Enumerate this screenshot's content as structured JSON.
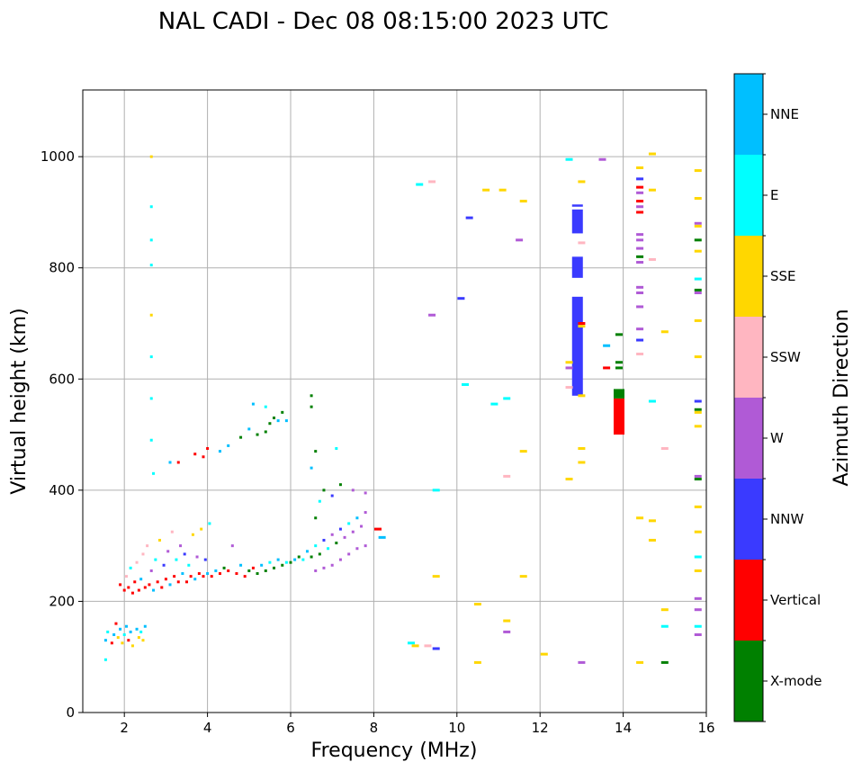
{
  "chart_data": {
    "type": "scatter",
    "title": "NAL CADI - Dec 08 08:15:00 2023 UTC",
    "xlabel": "Frequency (MHz)",
    "ylabel": "Virtual height (km)",
    "xlim": [
      1,
      16
    ],
    "ylim": [
      0,
      1120
    ],
    "xticks": [
      "2",
      "4",
      "6",
      "8",
      "10",
      "12",
      "14",
      "16"
    ],
    "yticks": [
      "0",
      "200",
      "400",
      "600",
      "800",
      "1000"
    ],
    "grid": true,
    "colorbar": {
      "label": "Azimuth Direction",
      "categories": [
        {
          "name": "X-mode",
          "color": "#008000"
        },
        {
          "name": "Vertical",
          "color": "#ff0000"
        },
        {
          "name": "NNW",
          "color": "#3a3aff"
        },
        {
          "name": "W",
          "color": "#b05ad6"
        },
        {
          "name": "SSW",
          "color": "#ffb6c1"
        },
        {
          "name": "SSE",
          "color": "#ffd700"
        },
        {
          "name": "E",
          "color": "#00ffff"
        },
        {
          "name": "NNE",
          "color": "#00bfff"
        }
      ]
    },
    "points": [
      {
        "f": 1.55,
        "h": 130,
        "c": "NNE"
      },
      {
        "f": 1.6,
        "h": 145,
        "c": "E"
      },
      {
        "f": 1.55,
        "h": 95,
        "c": "E"
      },
      {
        "f": 1.7,
        "h": 125,
        "c": "Vertical"
      },
      {
        "f": 1.75,
        "h": 140,
        "c": "NNE"
      },
      {
        "f": 1.8,
        "h": 160,
        "c": "Vertical"
      },
      {
        "f": 1.85,
        "h": 135,
        "c": "SSE"
      },
      {
        "f": 1.9,
        "h": 150,
        "c": "NNE"
      },
      {
        "f": 1.95,
        "h": 125,
        "c": "SSE"
      },
      {
        "f": 2.0,
        "h": 140,
        "c": "E"
      },
      {
        "f": 2.05,
        "h": 155,
        "c": "NNE"
      },
      {
        "f": 2.1,
        "h": 130,
        "c": "Vertical"
      },
      {
        "f": 2.15,
        "h": 145,
        "c": "NNE"
      },
      {
        "f": 2.2,
        "h": 120,
        "c": "SSE"
      },
      {
        "f": 2.3,
        "h": 150,
        "c": "NNE"
      },
      {
        "f": 2.35,
        "h": 135,
        "c": "SSE"
      },
      {
        "f": 2.4,
        "h": 145,
        "c": "E"
      },
      {
        "f": 2.45,
        "h": 130,
        "c": "SSE"
      },
      {
        "f": 2.5,
        "h": 155,
        "c": "NNE"
      },
      {
        "f": 1.9,
        "h": 230,
        "c": "Vertical"
      },
      {
        "f": 2.0,
        "h": 220,
        "c": "Vertical"
      },
      {
        "f": 2.05,
        "h": 245,
        "c": "SSW"
      },
      {
        "f": 2.1,
        "h": 225,
        "c": "Vertical"
      },
      {
        "f": 2.15,
        "h": 260,
        "c": "E"
      },
      {
        "f": 2.2,
        "h": 215,
        "c": "Vertical"
      },
      {
        "f": 2.25,
        "h": 235,
        "c": "Vertical"
      },
      {
        "f": 2.3,
        "h": 270,
        "c": "SSW"
      },
      {
        "f": 2.35,
        "h": 220,
        "c": "Vertical"
      },
      {
        "f": 2.4,
        "h": 240,
        "c": "NNE"
      },
      {
        "f": 2.45,
        "h": 285,
        "c": "SSW"
      },
      {
        "f": 2.5,
        "h": 225,
        "c": "Vertical"
      },
      {
        "f": 2.55,
        "h": 300,
        "c": "SSW"
      },
      {
        "f": 2.6,
        "h": 230,
        "c": "Vertical"
      },
      {
        "f": 2.65,
        "h": 255,
        "c": "W"
      },
      {
        "f": 2.7,
        "h": 220,
        "c": "NNE"
      },
      {
        "f": 2.75,
        "h": 275,
        "c": "E"
      },
      {
        "f": 2.8,
        "h": 235,
        "c": "Vertical"
      },
      {
        "f": 2.85,
        "h": 310,
        "c": "SSE"
      },
      {
        "f": 2.9,
        "h": 225,
        "c": "Vertical"
      },
      {
        "f": 2.95,
        "h": 265,
        "c": "NNW"
      },
      {
        "f": 3.0,
        "h": 240,
        "c": "Vertical"
      },
      {
        "f": 3.05,
        "h": 290,
        "c": "W"
      },
      {
        "f": 3.1,
        "h": 230,
        "c": "NNE"
      },
      {
        "f": 3.15,
        "h": 325,
        "c": "SSW"
      },
      {
        "f": 3.2,
        "h": 245,
        "c": "Vertical"
      },
      {
        "f": 3.25,
        "h": 275,
        "c": "E"
      },
      {
        "f": 3.3,
        "h": 235,
        "c": "Vertical"
      },
      {
        "f": 3.35,
        "h": 300,
        "c": "W"
      },
      {
        "f": 3.4,
        "h": 250,
        "c": "NNE"
      },
      {
        "f": 3.45,
        "h": 285,
        "c": "NNW"
      },
      {
        "f": 3.5,
        "h": 235,
        "c": "Vertical"
      },
      {
        "f": 3.55,
        "h": 265,
        "c": "E"
      },
      {
        "f": 3.6,
        "h": 245,
        "c": "Vertical"
      },
      {
        "f": 3.65,
        "h": 320,
        "c": "SSE"
      },
      {
        "f": 3.7,
        "h": 240,
        "c": "NNE"
      },
      {
        "f": 3.75,
        "h": 280,
        "c": "W"
      },
      {
        "f": 3.8,
        "h": 250,
        "c": "Vertical"
      },
      {
        "f": 3.85,
        "h": 330,
        "c": "SSE"
      },
      {
        "f": 3.9,
        "h": 245,
        "c": "Vertical"
      },
      {
        "f": 3.95,
        "h": 275,
        "c": "NNW"
      },
      {
        "f": 4.0,
        "h": 250,
        "c": "NNE"
      },
      {
        "f": 4.05,
        "h": 340,
        "c": "E"
      },
      {
        "f": 4.1,
        "h": 245,
        "c": "Vertical"
      },
      {
        "f": 4.2,
        "h": 255,
        "c": "NNE"
      },
      {
        "f": 4.3,
        "h": 250,
        "c": "Vertical"
      },
      {
        "f": 4.4,
        "h": 260,
        "c": "X-mode"
      },
      {
        "f": 4.5,
        "h": 255,
        "c": "Vertical"
      },
      {
        "f": 4.6,
        "h": 300,
        "c": "W"
      },
      {
        "f": 4.7,
        "h": 250,
        "c": "Vertical"
      },
      {
        "f": 4.8,
        "h": 265,
        "c": "NNE"
      },
      {
        "f": 4.9,
        "h": 245,
        "c": "Vertical"
      },
      {
        "f": 5.0,
        "h": 255,
        "c": "X-mode"
      },
      {
        "f": 5.1,
        "h": 260,
        "c": "Vertical"
      },
      {
        "f": 5.2,
        "h": 250,
        "c": "X-mode"
      },
      {
        "f": 5.3,
        "h": 265,
        "c": "NNE"
      },
      {
        "f": 5.4,
        "h": 255,
        "c": "X-mode"
      },
      {
        "f": 5.5,
        "h": 270,
        "c": "E"
      },
      {
        "f": 5.6,
        "h": 260,
        "c": "X-mode"
      },
      {
        "f": 5.7,
        "h": 275,
        "c": "NNE"
      },
      {
        "f": 5.8,
        "h": 265,
        "c": "X-mode"
      },
      {
        "f": 5.9,
        "h": 270,
        "c": "E"
      },
      {
        "f": 6.0,
        "h": 270,
        "c": "X-mode"
      },
      {
        "f": 6.1,
        "h": 275,
        "c": "NNE"
      },
      {
        "f": 6.2,
        "h": 280,
        "c": "X-mode"
      },
      {
        "f": 6.3,
        "h": 275,
        "c": "E"
      },
      {
        "f": 6.4,
        "h": 290,
        "c": "NNE"
      },
      {
        "f": 6.5,
        "h": 280,
        "c": "X-mode"
      },
      {
        "f": 6.6,
        "h": 300,
        "c": "E"
      },
      {
        "f": 6.7,
        "h": 285,
        "c": "X-mode"
      },
      {
        "f": 6.8,
        "h": 310,
        "c": "NNW"
      },
      {
        "f": 6.9,
        "h": 295,
        "c": "E"
      },
      {
        "f": 7.0,
        "h": 320,
        "c": "W"
      },
      {
        "f": 7.1,
        "h": 305,
        "c": "X-mode"
      },
      {
        "f": 7.2,
        "h": 330,
        "c": "NNW"
      },
      {
        "f": 7.3,
        "h": 315,
        "c": "W"
      },
      {
        "f": 7.4,
        "h": 340,
        "c": "E"
      },
      {
        "f": 7.5,
        "h": 325,
        "c": "W"
      },
      {
        "f": 7.6,
        "h": 350,
        "c": "NNE"
      },
      {
        "f": 7.7,
        "h": 335,
        "c": "W"
      },
      {
        "f": 7.8,
        "h": 360,
        "c": "W"
      },
      {
        "f": 6.6,
        "h": 255,
        "c": "W"
      },
      {
        "f": 6.8,
        "h": 260,
        "c": "W"
      },
      {
        "f": 7.0,
        "h": 265,
        "c": "W"
      },
      {
        "f": 7.2,
        "h": 275,
        "c": "W"
      },
      {
        "f": 7.4,
        "h": 285,
        "c": "W"
      },
      {
        "f": 7.6,
        "h": 295,
        "c": "W"
      },
      {
        "f": 7.8,
        "h": 300,
        "c": "W"
      },
      {
        "f": 8.1,
        "h": 330,
        "c": "Vertical"
      },
      {
        "f": 8.2,
        "h": 315,
        "c": "NNE"
      },
      {
        "f": 6.6,
        "h": 350,
        "c": "X-mode"
      },
      {
        "f": 6.7,
        "h": 380,
        "c": "E"
      },
      {
        "f": 6.8,
        "h": 400,
        "c": "X-mode"
      },
      {
        "f": 7.0,
        "h": 390,
        "c": "NNW"
      },
      {
        "f": 7.2,
        "h": 410,
        "c": "X-mode"
      },
      {
        "f": 7.5,
        "h": 400,
        "c": "W"
      },
      {
        "f": 7.8,
        "h": 395,
        "c": "W"
      },
      {
        "f": 6.5,
        "h": 440,
        "c": "NNE"
      },
      {
        "f": 6.6,
        "h": 470,
        "c": "X-mode"
      },
      {
        "f": 6.5,
        "h": 550,
        "c": "X-mode"
      },
      {
        "f": 6.5,
        "h": 570,
        "c": "X-mode"
      },
      {
        "f": 7.1,
        "h": 475,
        "c": "E"
      },
      {
        "f": 3.1,
        "h": 450,
        "c": "NNE"
      },
      {
        "f": 3.3,
        "h": 450,
        "c": "Vertical"
      },
      {
        "f": 3.7,
        "h": 465,
        "c": "Vertical"
      },
      {
        "f": 3.9,
        "h": 460,
        "c": "Vertical"
      },
      {
        "f": 4.0,
        "h": 475,
        "c": "Vertical"
      },
      {
        "f": 4.3,
        "h": 470,
        "c": "NNE"
      },
      {
        "f": 4.5,
        "h": 480,
        "c": "NNE"
      },
      {
        "f": 4.8,
        "h": 495,
        "c": "X-mode"
      },
      {
        "f": 5.0,
        "h": 510,
        "c": "NNE"
      },
      {
        "f": 5.2,
        "h": 500,
        "c": "X-mode"
      },
      {
        "f": 5.4,
        "h": 505,
        "c": "X-mode"
      },
      {
        "f": 5.5,
        "h": 520,
        "c": "X-mode"
      },
      {
        "f": 5.6,
        "h": 530,
        "c": "X-mode"
      },
      {
        "f": 5.7,
        "h": 525,
        "c": "NNE"
      },
      {
        "f": 5.8,
        "h": 540,
        "c": "X-mode"
      },
      {
        "f": 5.9,
        "h": 525,
        "c": "NNE"
      },
      {
        "f": 5.1,
        "h": 555,
        "c": "NNE"
      },
      {
        "f": 5.4,
        "h": 550,
        "c": "E"
      },
      {
        "f": 2.65,
        "h": 1000,
        "c": "SSE"
      },
      {
        "f": 2.65,
        "h": 910,
        "c": "E"
      },
      {
        "f": 2.65,
        "h": 850,
        "c": "E"
      },
      {
        "f": 2.65,
        "h": 805,
        "c": "E"
      },
      {
        "f": 2.65,
        "h": 715,
        "c": "SSE"
      },
      {
        "f": 2.65,
        "h": 640,
        "c": "E"
      },
      {
        "f": 2.65,
        "h": 565,
        "c": "E"
      },
      {
        "f": 2.65,
        "h": 490,
        "c": "E"
      },
      {
        "f": 2.7,
        "h": 430,
        "c": "E"
      },
      {
        "f": 9.1,
        "h": 950,
        "c": "E"
      },
      {
        "f": 9.4,
        "h": 955,
        "c": "SSW"
      },
      {
        "f": 10.3,
        "h": 890,
        "c": "NNW"
      },
      {
        "f": 10.7,
        "h": 940,
        "c": "SSE"
      },
      {
        "f": 11.1,
        "h": 940,
        "c": "SSE"
      },
      {
        "f": 11.5,
        "h": 850,
        "c": "W"
      },
      {
        "f": 11.6,
        "h": 920,
        "c": "SSE"
      },
      {
        "f": 9.4,
        "h": 715,
        "c": "W"
      },
      {
        "f": 10.1,
        "h": 745,
        "c": "NNW"
      },
      {
        "f": 10.2,
        "h": 590,
        "c": "E"
      },
      {
        "f": 10.9,
        "h": 555,
        "c": "E"
      },
      {
        "f": 11.2,
        "h": 565,
        "c": "E"
      },
      {
        "f": 11.6,
        "h": 470,
        "c": "SSE"
      },
      {
        "f": 11.2,
        "h": 425,
        "c": "SSW"
      },
      {
        "f": 9.5,
        "h": 400,
        "c": "E"
      },
      {
        "f": 9.5,
        "h": 245,
        "c": "SSE"
      },
      {
        "f": 11.6,
        "h": 245,
        "c": "SSE"
      },
      {
        "f": 10.5,
        "h": 195,
        "c": "SSE"
      },
      {
        "f": 11.2,
        "h": 165,
        "c": "SSE"
      },
      {
        "f": 11.2,
        "h": 145,
        "c": "W"
      },
      {
        "f": 12.1,
        "h": 105,
        "c": "SSE"
      },
      {
        "f": 10.5,
        "h": 90,
        "c": "SSE"
      },
      {
        "f": 8.9,
        "h": 125,
        "c": "E"
      },
      {
        "f": 9.0,
        "h": 120,
        "c": "SSE"
      },
      {
        "f": 9.5,
        "h": 115,
        "c": "NNW"
      },
      {
        "f": 9.3,
        "h": 120,
        "c": "SSW"
      },
      {
        "f": 12.7,
        "h": 995,
        "c": "E"
      },
      {
        "f": 13.0,
        "h": 955,
        "c": "SSE"
      },
      {
        "f": 13.0,
        "h": 845,
        "c": "SSW"
      },
      {
        "f": 13.5,
        "h": 995,
        "c": "W"
      },
      {
        "f": 12.7,
        "h": 620,
        "c": "W"
      },
      {
        "f": 12.7,
        "h": 630,
        "c": "SSE"
      },
      {
        "f": 12.7,
        "h": 585,
        "c": "SSW"
      },
      {
        "f": 13.0,
        "h": 570,
        "c": "SSE"
      },
      {
        "f": 13.0,
        "h": 700,
        "c": "Vertical"
      },
      {
        "f": 13.0,
        "h": 695,
        "c": "SSE"
      },
      {
        "f": 12.7,
        "h": 420,
        "c": "SSE"
      },
      {
        "f": 13.0,
        "h": 475,
        "c": "SSE"
      },
      {
        "f": 13.0,
        "h": 450,
        "c": "SSE"
      },
      {
        "f": 13.0,
        "h": 90,
        "c": "W"
      },
      {
        "f": 13.6,
        "h": 660,
        "c": "NNE"
      },
      {
        "f": 13.6,
        "h": 620,
        "c": "Vertical"
      },
      {
        "f": 13.9,
        "h": 680,
        "c": "X-mode"
      },
      {
        "f": 13.9,
        "h": 630,
        "c": "X-mode"
      },
      {
        "f": 13.9,
        "h": 620,
        "c": "X-mode"
      },
      {
        "f": 14.4,
        "h": 980,
        "c": "SSE"
      },
      {
        "f": 14.4,
        "h": 960,
        "c": "NNW"
      },
      {
        "f": 14.4,
        "h": 945,
        "c": "Vertical"
      },
      {
        "f": 14.4,
        "h": 935,
        "c": "W"
      },
      {
        "f": 14.4,
        "h": 920,
        "c": "Vertical"
      },
      {
        "f": 14.4,
        "h": 910,
        "c": "W"
      },
      {
        "f": 14.4,
        "h": 900,
        "c": "Vertical"
      },
      {
        "f": 14.4,
        "h": 860,
        "c": "W"
      },
      {
        "f": 14.4,
        "h": 850,
        "c": "W"
      },
      {
        "f": 14.4,
        "h": 835,
        "c": "W"
      },
      {
        "f": 14.4,
        "h": 820,
        "c": "X-mode"
      },
      {
        "f": 14.4,
        "h": 810,
        "c": "W"
      },
      {
        "f": 14.4,
        "h": 765,
        "c": "W"
      },
      {
        "f": 14.4,
        "h": 755,
        "c": "W"
      },
      {
        "f": 14.4,
        "h": 730,
        "c": "W"
      },
      {
        "f": 14.4,
        "h": 690,
        "c": "W"
      },
      {
        "f": 14.4,
        "h": 670,
        "c": "NNW"
      },
      {
        "f": 14.4,
        "h": 645,
        "c": "SSW"
      },
      {
        "f": 14.7,
        "h": 1005,
        "c": "SSE"
      },
      {
        "f": 14.7,
        "h": 940,
        "c": "SSE"
      },
      {
        "f": 14.7,
        "h": 815,
        "c": "SSW"
      },
      {
        "f": 15.0,
        "h": 685,
        "c": "SSE"
      },
      {
        "f": 14.7,
        "h": 560,
        "c": "E"
      },
      {
        "f": 15.0,
        "h": 475,
        "c": "SSW"
      },
      {
        "f": 14.4,
        "h": 350,
        "c": "SSE"
      },
      {
        "f": 14.7,
        "h": 345,
        "c": "SSE"
      },
      {
        "f": 14.7,
        "h": 310,
        "c": "SSE"
      },
      {
        "f": 15.0,
        "h": 185,
        "c": "SSE"
      },
      {
        "f": 15.0,
        "h": 155,
        "c": "E"
      },
      {
        "f": 14.4,
        "h": 90,
        "c": "SSE"
      },
      {
        "f": 15.0,
        "h": 90,
        "c": "X-mode"
      },
      {
        "f": 15.8,
        "h": 975,
        "c": "SSE"
      },
      {
        "f": 15.8,
        "h": 925,
        "c": "SSE"
      },
      {
        "f": 15.8,
        "h": 880,
        "c": "W"
      },
      {
        "f": 15.8,
        "h": 875,
        "c": "SSE"
      },
      {
        "f": 15.8,
        "h": 850,
        "c": "X-mode"
      },
      {
        "f": 15.8,
        "h": 830,
        "c": "SSE"
      },
      {
        "f": 15.8,
        "h": 780,
        "c": "E"
      },
      {
        "f": 15.8,
        "h": 760,
        "c": "X-mode"
      },
      {
        "f": 15.8,
        "h": 755,
        "c": "W"
      },
      {
        "f": 15.8,
        "h": 705,
        "c": "SSE"
      },
      {
        "f": 15.8,
        "h": 640,
        "c": "SSE"
      },
      {
        "f": 15.8,
        "h": 560,
        "c": "NNW"
      },
      {
        "f": 15.8,
        "h": 545,
        "c": "X-mode"
      },
      {
        "f": 15.8,
        "h": 540,
        "c": "SSE"
      },
      {
        "f": 15.8,
        "h": 515,
        "c": "SSE"
      },
      {
        "f": 15.8,
        "h": 425,
        "c": "W"
      },
      {
        "f": 15.8,
        "h": 420,
        "c": "X-mode"
      },
      {
        "f": 15.8,
        "h": 370,
        "c": "SSE"
      },
      {
        "f": 15.8,
        "h": 325,
        "c": "SSE"
      },
      {
        "f": 15.8,
        "h": 280,
        "c": "E"
      },
      {
        "f": 15.8,
        "h": 255,
        "c": "SSE"
      },
      {
        "f": 15.8,
        "h": 205,
        "c": "W"
      },
      {
        "f": 15.8,
        "h": 185,
        "c": "W"
      },
      {
        "f": 15.8,
        "h": 155,
        "c": "E"
      },
      {
        "f": 15.8,
        "h": 140,
        "c": "W"
      }
    ],
    "bars": [
      {
        "f": 12.9,
        "h0": 570,
        "h1": 748,
        "c": "NNW"
      },
      {
        "f": 12.9,
        "h0": 782,
        "h1": 820,
        "c": "NNW"
      },
      {
        "f": 12.9,
        "h0": 862,
        "h1": 905,
        "c": "NNW"
      },
      {
        "f": 12.9,
        "h0": 910,
        "h1": 914,
        "c": "NNW"
      },
      {
        "f": 13.9,
        "h0": 500,
        "h1": 565,
        "c": "Vertical"
      },
      {
        "f": 13.9,
        "h0": 565,
        "h1": 582,
        "c": "X-mode"
      }
    ]
  }
}
